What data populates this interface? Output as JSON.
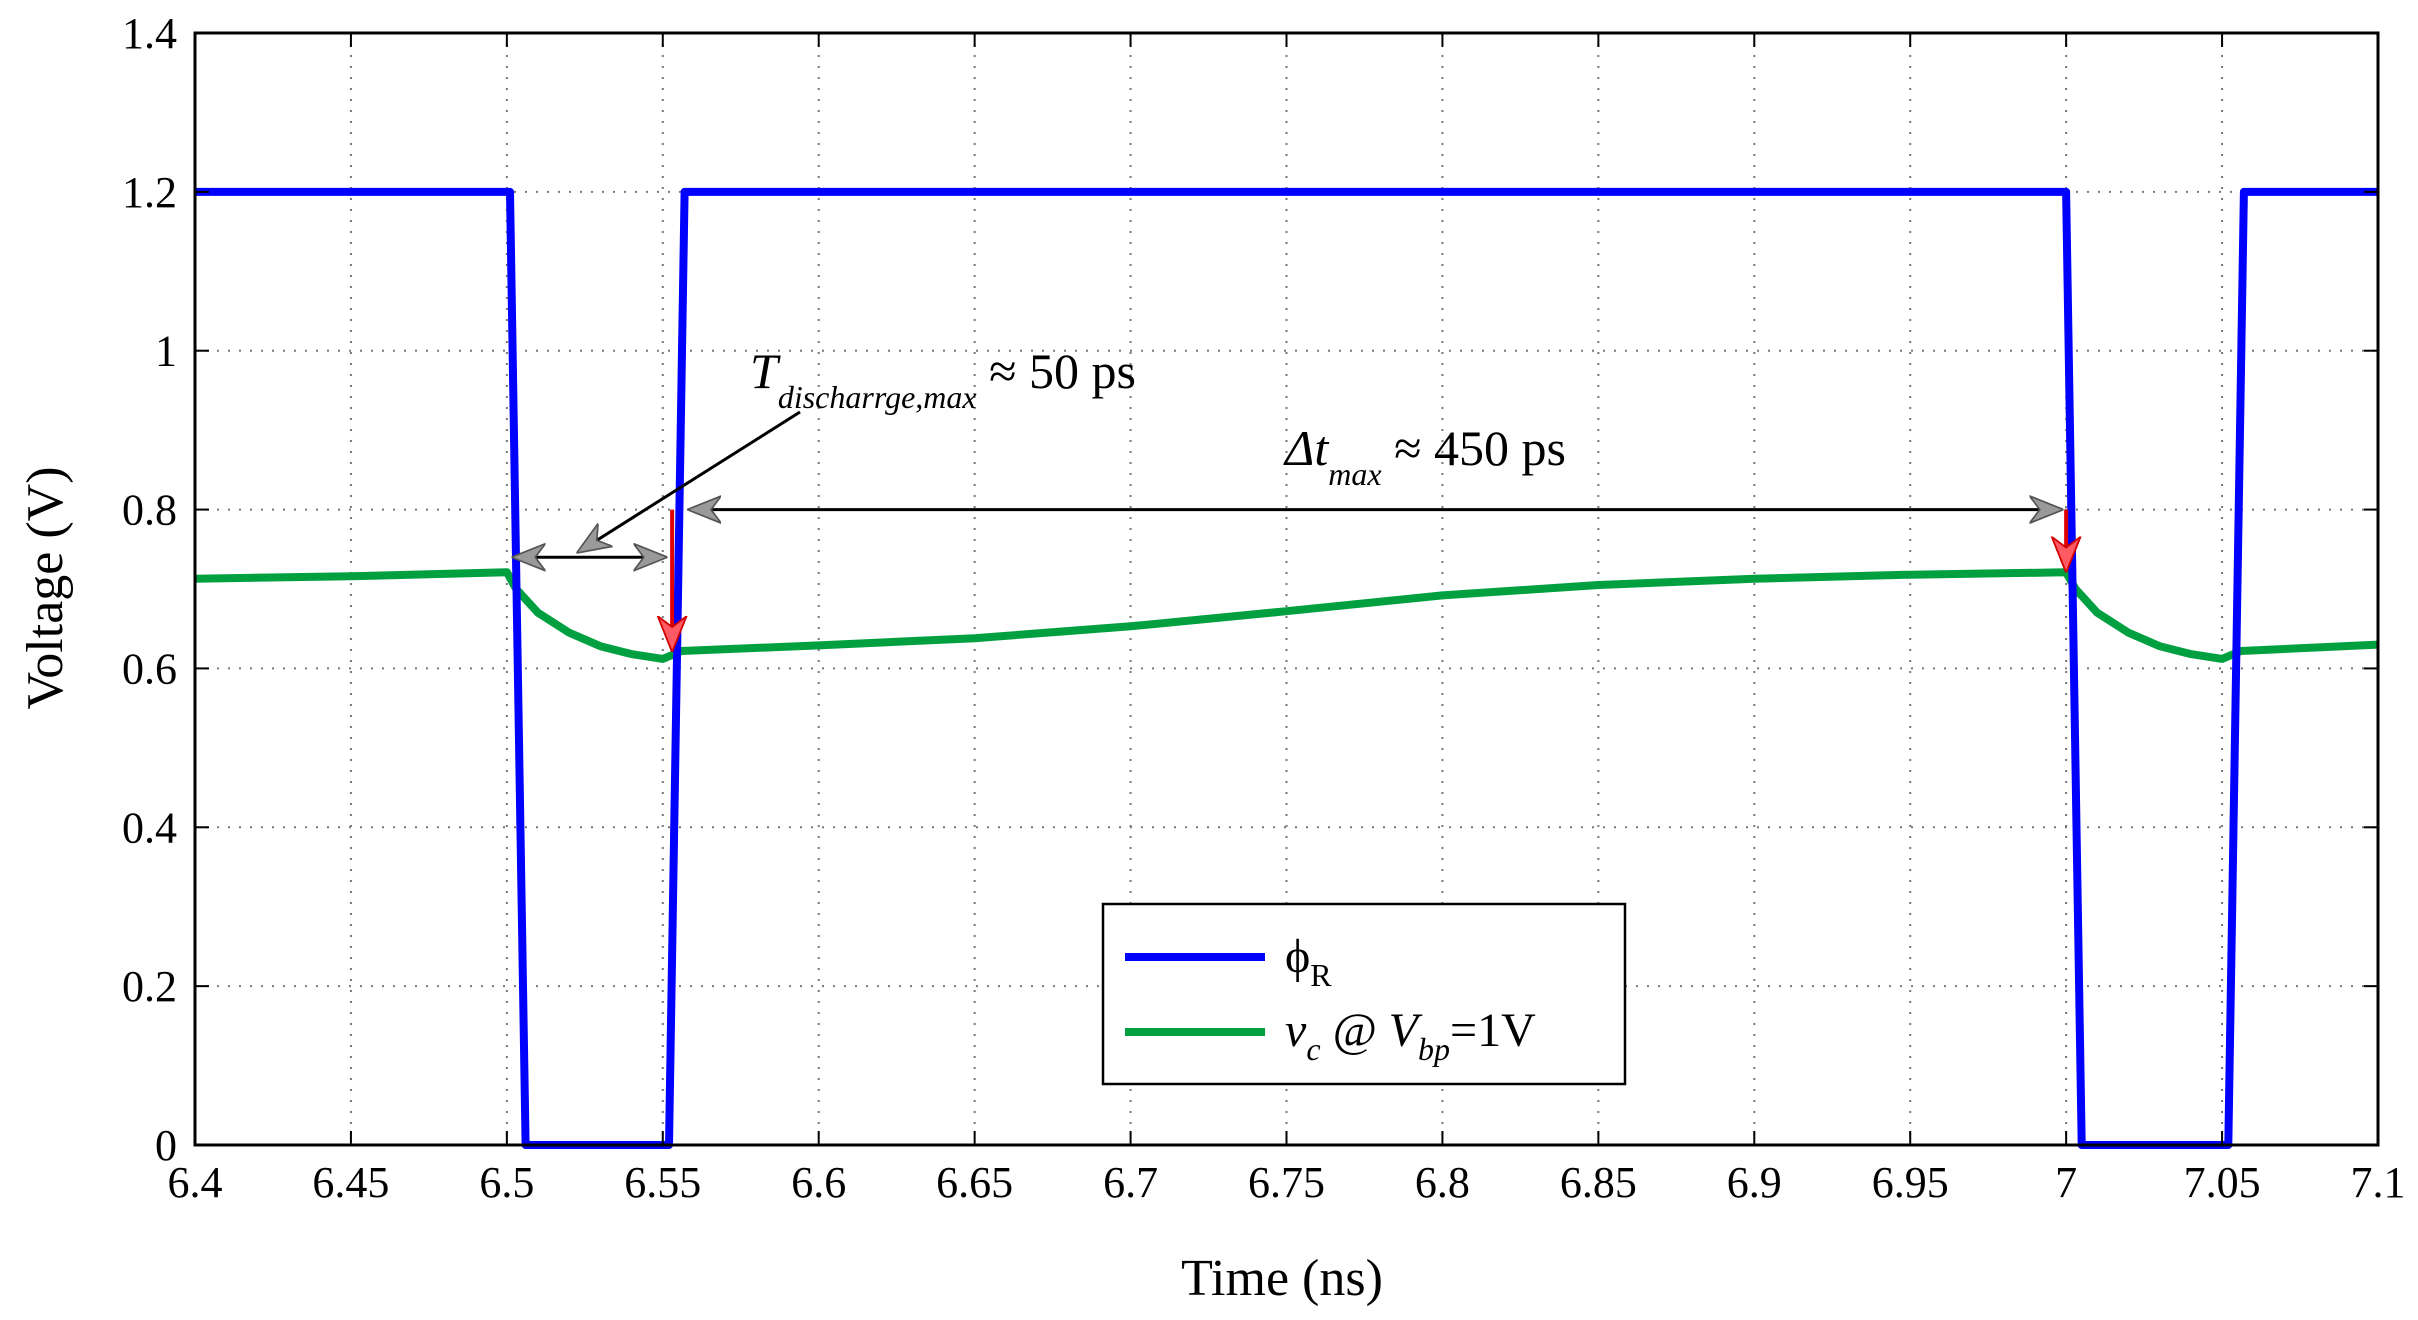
{
  "chart_data": {
    "type": "line",
    "title": "",
    "xlabel": "Time (ns)",
    "ylabel": "Voltage (V)",
    "xlim": [
      6.4,
      7.1
    ],
    "ylim": [
      0,
      1.4
    ],
    "grid": true,
    "xticks": [
      "6.4",
      "6.45",
      "6.5",
      "6.55",
      "6.6",
      "6.65",
      "6.7",
      "6.75",
      "6.8",
      "6.85",
      "6.9",
      "6.95",
      "7",
      "7.05",
      "7.1"
    ],
    "yticks": [
      "0",
      "0.2",
      "0.4",
      "0.6",
      "0.8",
      "1",
      "1.2",
      "1.4"
    ],
    "legend_position": "bottom-center",
    "series": [
      {
        "name": "phi_R",
        "legend_symbol": "ϕ",
        "legend_sub": "R",
        "color": "#0000ff",
        "x": [
          6.4,
          6.501,
          6.506,
          6.552,
          6.557,
          7.0,
          7.005,
          7.052,
          7.057,
          7.1
        ],
        "y": [
          1.2,
          1.2,
          0.0,
          0.0,
          1.2,
          1.2,
          0.0,
          0.0,
          1.2,
          1.2
        ]
      },
      {
        "name": "v_c @ V_bp=1V",
        "legend_v": "v",
        "legend_v_sub": "c",
        "legend_at": " @ ",
        "legend_V": "V",
        "legend_V_sub": "bp",
        "legend_tail": "=1V",
        "color": "#00a040",
        "x": [
          6.4,
          6.45,
          6.5,
          6.503,
          6.51,
          6.52,
          6.53,
          6.54,
          6.55,
          6.556,
          6.6,
          6.65,
          6.7,
          6.75,
          6.8,
          6.85,
          6.9,
          6.95,
          7.0,
          7.003,
          7.01,
          7.02,
          7.03,
          7.04,
          7.05,
          7.056,
          7.1
        ],
        "y": [
          0.713,
          0.716,
          0.721,
          0.7,
          0.67,
          0.645,
          0.628,
          0.618,
          0.612,
          0.622,
          0.629,
          0.638,
          0.653,
          0.672,
          0.692,
          0.705,
          0.713,
          0.718,
          0.721,
          0.7,
          0.67,
          0.645,
          0.628,
          0.618,
          0.612,
          0.622,
          0.63
        ]
      }
    ],
    "annotations": {
      "t_discharge": {
        "main": "T",
        "sub": "discharrge,max",
        "value": " ≈ 50 ps",
        "arrow_x": [
          6.5,
          6.553
        ],
        "arrow_y": 0.74
      },
      "delta_t": {
        "main": "Δt",
        "sub": "max",
        "value": " ≈ 450 ps",
        "arrow_x": [
          6.557,
          7.0
        ],
        "arrow_y": 0.8
      },
      "red_markers": [
        {
          "x": 6.553,
          "y_from": 0.8,
          "y_to": 0.625
        },
        {
          "x": 7.0,
          "y_from": 0.8,
          "y_to": 0.725
        }
      ]
    }
  }
}
